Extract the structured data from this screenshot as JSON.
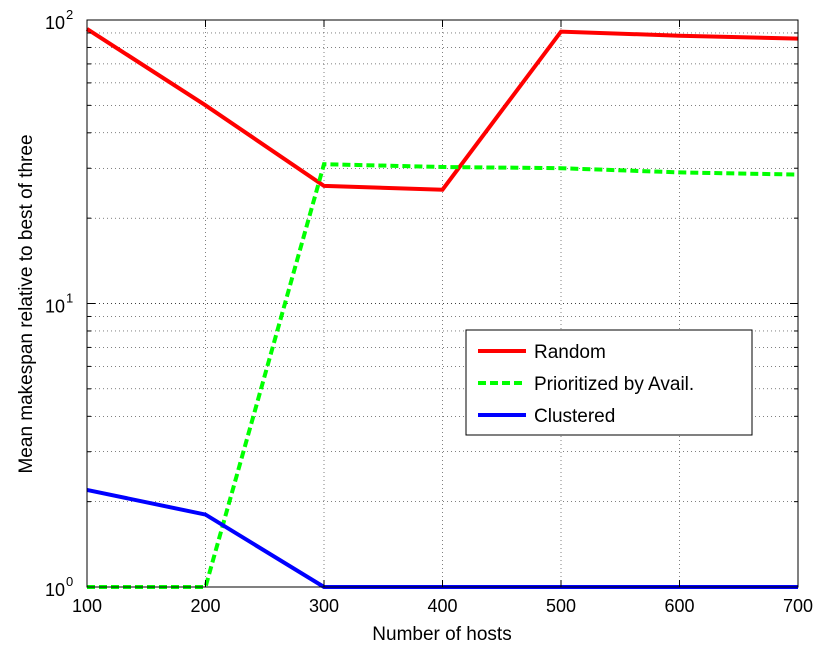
{
  "chart_data": {
    "type": "line",
    "xlabel": "Number of hosts",
    "ylabel": "Mean makespan relative to best of three",
    "x": [
      100,
      200,
      300,
      400,
      500,
      600,
      700
    ],
    "xlim": [
      100,
      700
    ],
    "ylim": [
      1,
      100
    ],
    "yscale": "log",
    "xticks": [
      "100",
      "200",
      "300",
      "400",
      "500",
      "600",
      "700"
    ],
    "yticks": [
      {
        "value": 1,
        "base": "10",
        "exp": "0"
      },
      {
        "value": 10,
        "base": "10",
        "exp": "1"
      },
      {
        "value": 100,
        "base": "10",
        "exp": "2"
      }
    ],
    "grid": true,
    "legend_position": "right-center",
    "series": [
      {
        "name": "Random",
        "color": "#ff0000",
        "style": "solid",
        "values": [
          93,
          50,
          26,
          25.2,
          91,
          88,
          86
        ]
      },
      {
        "name": "Prioritized by Avail.",
        "color": "#00ff00",
        "style": "dashed",
        "values": [
          1,
          1,
          31,
          30.3,
          30,
          29,
          28.5
        ]
      },
      {
        "name": "Clustered",
        "color": "#0000ff",
        "style": "solid",
        "values": [
          2.2,
          1.8,
          1,
          1,
          1,
          1,
          1
        ]
      }
    ]
  }
}
